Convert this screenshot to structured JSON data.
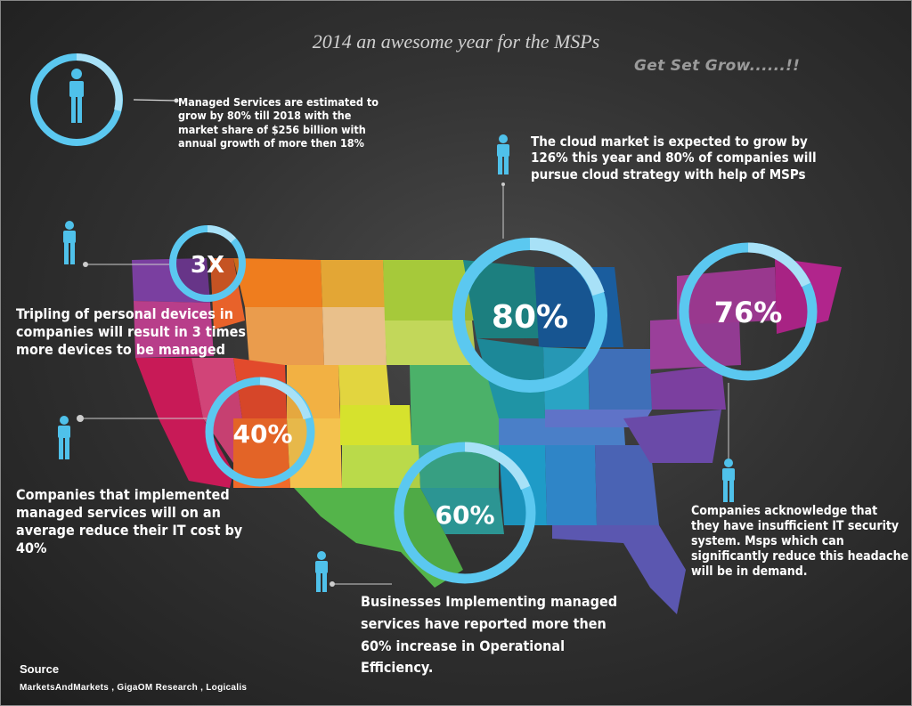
{
  "title": "2014 an awesome year for the MSPs",
  "tagline": "Get Set Grow......!!",
  "stats": [
    {
      "id": "managed-services-growth",
      "value": "",
      "text": "Managed Services are estimated to grow by 80% till 2018 with the market share of $256 billion with annual growth of more then 18%"
    },
    {
      "id": "cloud",
      "value": "80%",
      "text": "The cloud market is expected to grow by 126% this year and 80% of companies will pursue cloud strategy with help of MSPs"
    },
    {
      "id": "devices",
      "value": "3X",
      "text": "Tripling of personal devices in companies will result in 3 times more devices to be managed"
    },
    {
      "id": "security",
      "value": "76%",
      "text": "Companies acknowledge that they have insufficient IT security system. Msps which can significantly reduce this headache will be in demand."
    },
    {
      "id": "it-cost",
      "value": "40%",
      "text": "Companies that implemented managed services will on an average reduce their IT cost by 40%"
    },
    {
      "id": "efficiency",
      "value": "60%",
      "text": "Businesses Implementing managed services have reported more then 60% increase in  Operational Efficiency."
    }
  ],
  "source": {
    "title": "Source",
    "list": "MarketsAndMarkets , GigaOM Research , Logicalis"
  },
  "colors": {
    "ring": "#5bc8f0",
    "ring_light": "#a8e1f7",
    "person_icon": "#4fc1ea"
  }
}
